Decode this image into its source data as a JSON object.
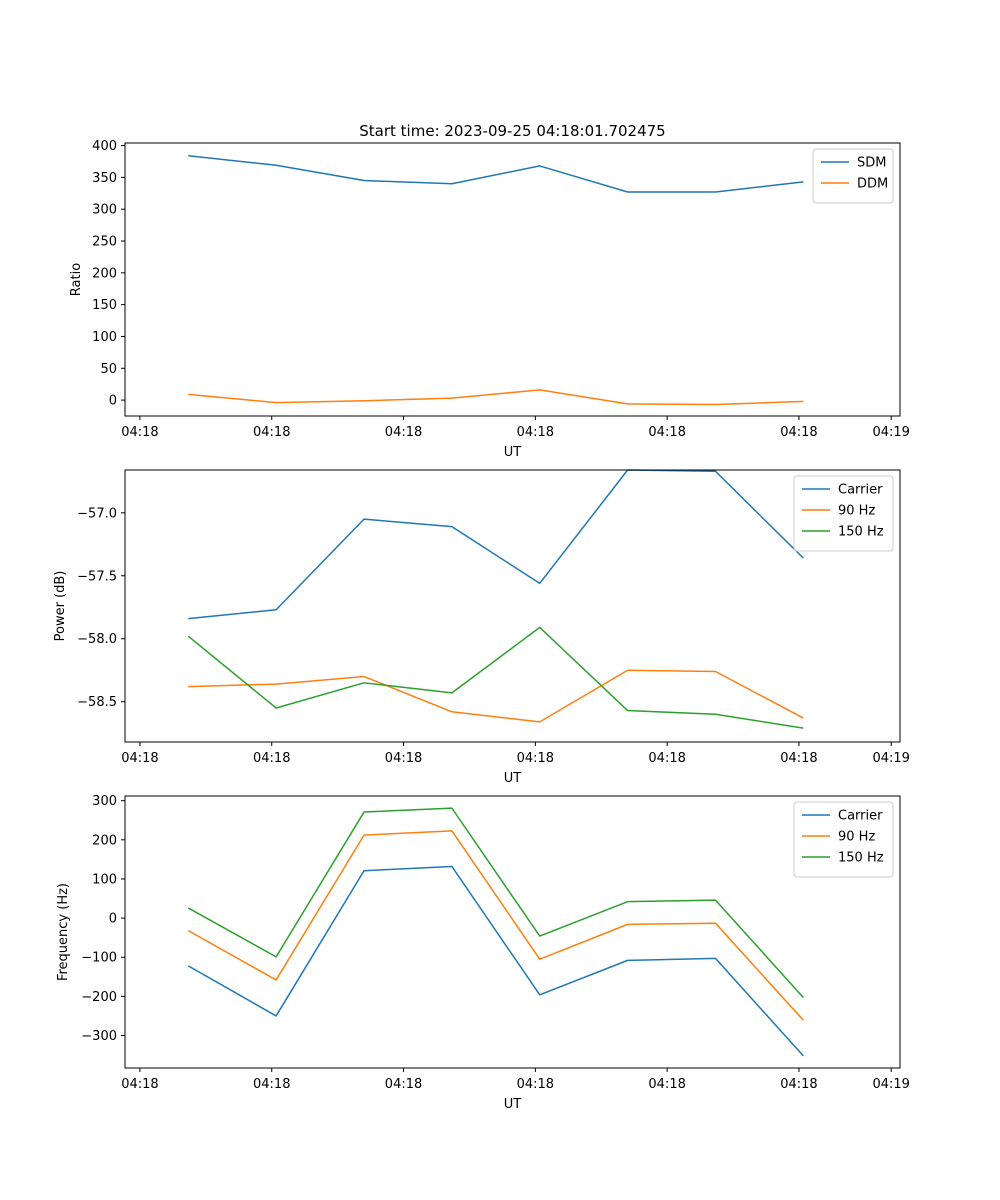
{
  "figure_title": "Start time: 2023-09-25 04:18:01.702475",
  "colors": {
    "c0": "#1f77b4",
    "c1": "#ff7f0e",
    "c2": "#2ca02c"
  },
  "chart_data": [
    {
      "type": "line",
      "title": "Start time: 2023-09-25 04:18:01.702475",
      "xlabel": "UT",
      "ylabel": "Ratio",
      "x": [
        1,
        2,
        3,
        4,
        5,
        6,
        7,
        8
      ],
      "xlim": [
        0.28,
        9.1
      ],
      "xticks": [
        0.45,
        1.95,
        3.45,
        4.95,
        6.45,
        7.95,
        9.0
      ],
      "xtick_labels": [
        "04:18",
        "04:18",
        "04:18",
        "04:18",
        "04:18",
        "04:18",
        "04:19"
      ],
      "ylim": [
        -25,
        404
      ],
      "yticks": [
        0,
        50,
        100,
        150,
        200,
        250,
        300,
        350,
        400
      ],
      "ytick_labels": [
        "0",
        "50",
        "100",
        "150",
        "200",
        "250",
        "300",
        "350",
        "400"
      ],
      "legend_position": "top-right",
      "series": [
        {
          "name": "SDM",
          "color": "#1f77b4",
          "values": [
            384,
            369,
            345,
            340,
            368,
            327,
            327,
            343
          ]
        },
        {
          "name": "DDM",
          "color": "#ff7f0e",
          "values": [
            9,
            -4,
            -1,
            3,
            16,
            -6,
            -7,
            -2
          ]
        }
      ]
    },
    {
      "type": "line",
      "title": "",
      "xlabel": "UT",
      "ylabel": "Power (dB)",
      "x": [
        1,
        2,
        3,
        4,
        5,
        6,
        7,
        8
      ],
      "xlim": [
        0.28,
        9.1
      ],
      "xticks": [
        0.45,
        1.95,
        3.45,
        4.95,
        6.45,
        7.95,
        9.0
      ],
      "xtick_labels": [
        "04:18",
        "04:18",
        "04:18",
        "04:18",
        "04:18",
        "04:18",
        "04:19"
      ],
      "ylim": [
        -58.82,
        -56.66
      ],
      "yticks": [
        -58.5,
        -58.0,
        -57.5,
        -57.0
      ],
      "ytick_labels": [
        "−58.5",
        "−58.0",
        "−57.5",
        "−57.0"
      ],
      "legend_position": "top-right",
      "series": [
        {
          "name": "Carrier",
          "color": "#1f77b4",
          "values": [
            -57.84,
            -57.77,
            -57.05,
            -57.11,
            -57.56,
            -56.66,
            -56.67,
            -57.36
          ]
        },
        {
          "name": "90 Hz",
          "color": "#ff7f0e",
          "values": [
            -58.38,
            -58.36,
            -58.3,
            -58.58,
            -58.66,
            -58.25,
            -58.26,
            -58.63
          ]
        },
        {
          "name": "150 Hz",
          "color": "#2ca02c",
          "values": [
            -57.98,
            -58.55,
            -58.35,
            -58.43,
            -57.91,
            -58.57,
            -58.6,
            -58.71
          ]
        }
      ]
    },
    {
      "type": "line",
      "title": "",
      "xlabel": "UT",
      "ylabel": "Frequency (Hz)",
      "x": [
        1,
        2,
        3,
        4,
        5,
        6,
        7,
        8
      ],
      "xlim": [
        0.28,
        9.1
      ],
      "xticks": [
        0.45,
        1.95,
        3.45,
        4.95,
        6.45,
        7.95,
        9.0
      ],
      "xtick_labels": [
        "04:18",
        "04:18",
        "04:18",
        "04:18",
        "04:18",
        "04:18",
        "04:19"
      ],
      "ylim": [
        -383,
        312
      ],
      "yticks": [
        -300,
        -200,
        -100,
        0,
        100,
        200,
        300
      ],
      "ytick_labels": [
        "−300",
        "−200",
        "−100",
        "0",
        "100",
        "200",
        "300"
      ],
      "legend_position": "top-right",
      "series": [
        {
          "name": "Carrier",
          "color": "#1f77b4",
          "values": [
            -122,
            -250,
            121,
            132,
            -196,
            -108,
            -103,
            -352
          ]
        },
        {
          "name": "90 Hz",
          "color": "#ff7f0e",
          "values": [
            -32,
            -158,
            212,
            223,
            -105,
            -16,
            -13,
            -261
          ]
        },
        {
          "name": "150 Hz",
          "color": "#2ca02c",
          "values": [
            26,
            -99,
            271,
            281,
            -46,
            42,
            46,
            -203
          ]
        }
      ]
    }
  ]
}
